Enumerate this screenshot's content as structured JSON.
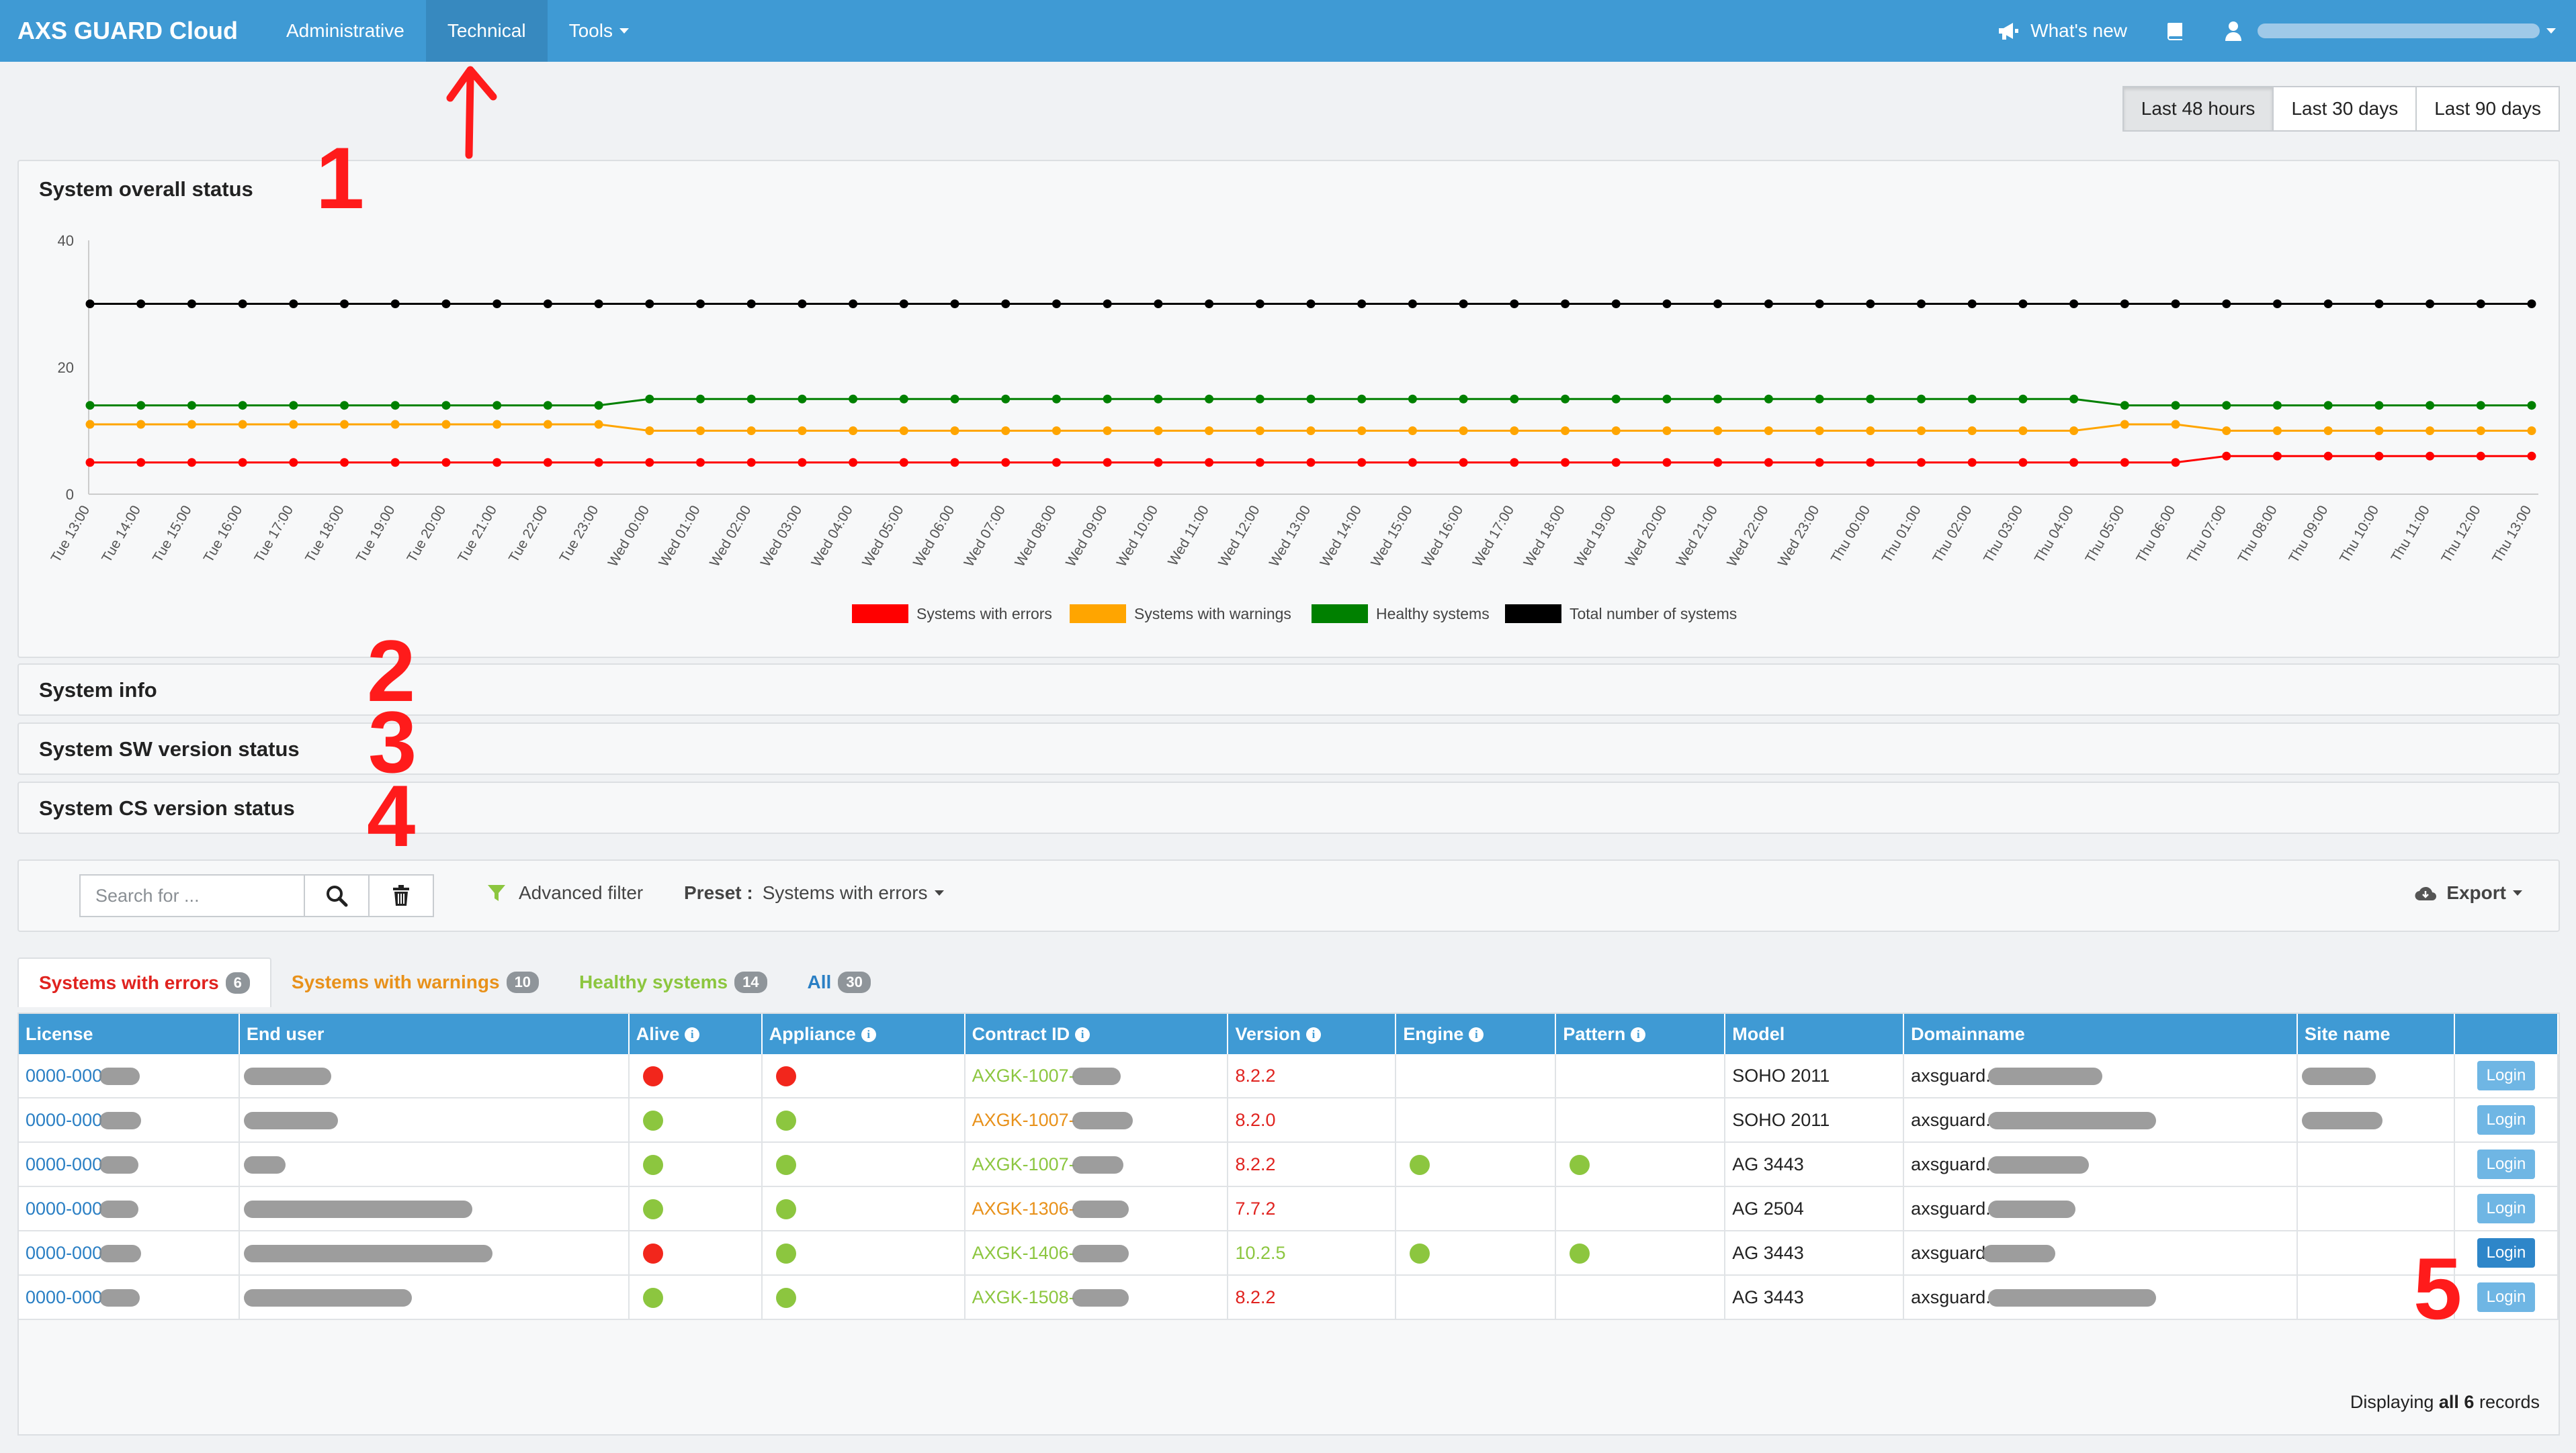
{
  "nav": {
    "brand": "AXS GUARD Cloud",
    "links": [
      "Administrative",
      "Technical",
      "Tools"
    ],
    "whats_new": "What's new"
  },
  "range_buttons": [
    "Last 48 hours",
    "Last 30 days",
    "Last 90 days"
  ],
  "panels": {
    "overall_title": "System overall status",
    "info_title": "System info",
    "sw_title": "System SW version status",
    "cs_title": "System CS version status"
  },
  "chart_data": {
    "type": "line",
    "ylim": [
      0,
      40
    ],
    "yticks": [
      0,
      20,
      40
    ],
    "grid": false,
    "legend_position": "bottom",
    "x": [
      "Tue 13:00",
      "Tue 14:00",
      "Tue 15:00",
      "Tue 16:00",
      "Tue 17:00",
      "Tue 18:00",
      "Tue 19:00",
      "Tue 20:00",
      "Tue 21:00",
      "Tue 22:00",
      "Tue 23:00",
      "Wed 00:00",
      "Wed 01:00",
      "Wed 02:00",
      "Wed 03:00",
      "Wed 04:00",
      "Wed 05:00",
      "Wed 06:00",
      "Wed 07:00",
      "Wed 08:00",
      "Wed 09:00",
      "Wed 10:00",
      "Wed 11:00",
      "Wed 12:00",
      "Wed 13:00",
      "Wed 14:00",
      "Wed 15:00",
      "Wed 16:00",
      "Wed 17:00",
      "Wed 18:00",
      "Wed 19:00",
      "Wed 20:00",
      "Wed 21:00",
      "Wed 22:00",
      "Wed 23:00",
      "Thu 00:00",
      "Thu 01:00",
      "Thu 02:00",
      "Thu 03:00",
      "Thu 04:00",
      "Thu 05:00",
      "Thu 06:00",
      "Thu 07:00",
      "Thu 08:00",
      "Thu 09:00",
      "Thu 10:00",
      "Thu 11:00",
      "Thu 12:00",
      "Thu 13:00"
    ],
    "series": [
      {
        "name": "Systems with errors",
        "color": "#ff0000",
        "values": [
          5,
          5,
          5,
          5,
          5,
          5,
          5,
          5,
          5,
          5,
          5,
          5,
          5,
          5,
          5,
          5,
          5,
          5,
          5,
          5,
          5,
          5,
          5,
          5,
          5,
          5,
          5,
          5,
          5,
          5,
          5,
          5,
          5,
          5,
          5,
          5,
          5,
          5,
          5,
          5,
          5,
          5,
          6,
          6,
          6,
          6,
          6,
          6,
          6
        ]
      },
      {
        "name": "Systems with warnings",
        "color": "#ffa500",
        "values": [
          11,
          11,
          11,
          11,
          11,
          11,
          11,
          11,
          11,
          11,
          11,
          10,
          10,
          10,
          10,
          10,
          10,
          10,
          10,
          10,
          10,
          10,
          10,
          10,
          10,
          10,
          10,
          10,
          10,
          10,
          10,
          10,
          10,
          10,
          10,
          10,
          10,
          10,
          10,
          10,
          11,
          11,
          10,
          10,
          10,
          10,
          10,
          10,
          10
        ]
      },
      {
        "name": "Healthy systems",
        "color": "#008000",
        "values": [
          14,
          14,
          14,
          14,
          14,
          14,
          14,
          14,
          14,
          14,
          14,
          15,
          15,
          15,
          15,
          15,
          15,
          15,
          15,
          15,
          15,
          15,
          15,
          15,
          15,
          15,
          15,
          15,
          15,
          15,
          15,
          15,
          15,
          15,
          15,
          15,
          15,
          15,
          15,
          15,
          14,
          14,
          14,
          14,
          14,
          14,
          14,
          14,
          14
        ]
      },
      {
        "name": "Total number of systems",
        "color": "#000000",
        "values": [
          30,
          30,
          30,
          30,
          30,
          30,
          30,
          30,
          30,
          30,
          30,
          30,
          30,
          30,
          30,
          30,
          30,
          30,
          30,
          30,
          30,
          30,
          30,
          30,
          30,
          30,
          30,
          30,
          30,
          30,
          30,
          30,
          30,
          30,
          30,
          30,
          30,
          30,
          30,
          30,
          30,
          30,
          30,
          30,
          30,
          30,
          30,
          30,
          30
        ]
      }
    ]
  },
  "toolbar": {
    "search_placeholder": "Search for ...",
    "advanced_filter": "Advanced filter",
    "preset_label": "Preset :",
    "preset_value": "Systems with errors",
    "export": "Export"
  },
  "tabs": [
    {
      "label": "Systems with errors",
      "count": "6",
      "color": "#e0231f"
    },
    {
      "label": "Systems with warnings",
      "count": "10",
      "color": "#e8911a"
    },
    {
      "label": "Healthy systems",
      "count": "14",
      "color": "#8cc63f"
    },
    {
      "label": "All",
      "count": "30",
      "color": "#2a7fc4"
    }
  ],
  "table": {
    "headers": [
      "License",
      "End user",
      "Alive",
      "Appliance",
      "Contract ID",
      "Version",
      "Engine",
      "Pattern",
      "Model",
      "Domainname",
      "Site name"
    ],
    "login_label": "Login",
    "rows": [
      {
        "license": "0000-000",
        "alive": "red",
        "appliance": "red",
        "contract": "AXGK-1007-",
        "contract_color": "#8cc63f",
        "version": "8.2.2",
        "version_color": "#e0231f",
        "engine": "",
        "pattern": "",
        "model": "SOHO 2011",
        "domain": "axsguard."
      },
      {
        "license": "0000-000",
        "alive": "green",
        "appliance": "green",
        "contract": "AXGK-1007-",
        "contract_color": "#e8911a",
        "version": "8.2.0",
        "version_color": "#e0231f",
        "engine": "",
        "pattern": "",
        "model": "SOHO 2011",
        "domain": "axsguard."
      },
      {
        "license": "0000-000",
        "alive": "green",
        "appliance": "green",
        "contract": "AXGK-1007-",
        "contract_color": "#8cc63f",
        "version": "8.2.2",
        "version_color": "#e0231f",
        "engine": "green",
        "pattern": "green",
        "model": "AG 3443",
        "domain": "axsguard."
      },
      {
        "license": "0000-000",
        "alive": "green",
        "appliance": "green",
        "contract": "AXGK-1306-",
        "contract_color": "#e8911a",
        "version": "7.7.2",
        "version_color": "#e0231f",
        "engine": "",
        "pattern": "",
        "model": "AG 2504",
        "domain": "axsguard."
      },
      {
        "license": "0000-000",
        "alive": "red",
        "appliance": "green",
        "contract": "AXGK-1406-",
        "contract_color": "#8cc63f",
        "version": "10.2.5",
        "version_color": "#8cc63f",
        "engine": "green",
        "pattern": "green",
        "model": "AG 3443",
        "domain": "axsguard"
      },
      {
        "license": "0000-000",
        "alive": "green",
        "appliance": "green",
        "contract": "AXGK-1508-",
        "contract_color": "#8cc63f",
        "version": "8.2.2",
        "version_color": "#e0231f",
        "engine": "",
        "pattern": "",
        "model": "AG 3443",
        "domain": "axsguard."
      }
    ]
  },
  "records": {
    "prefix": "Displaying",
    "bold": "all 6",
    "suffix": "records"
  },
  "annotations": [
    "1",
    "2",
    "3",
    "4",
    "5"
  ]
}
